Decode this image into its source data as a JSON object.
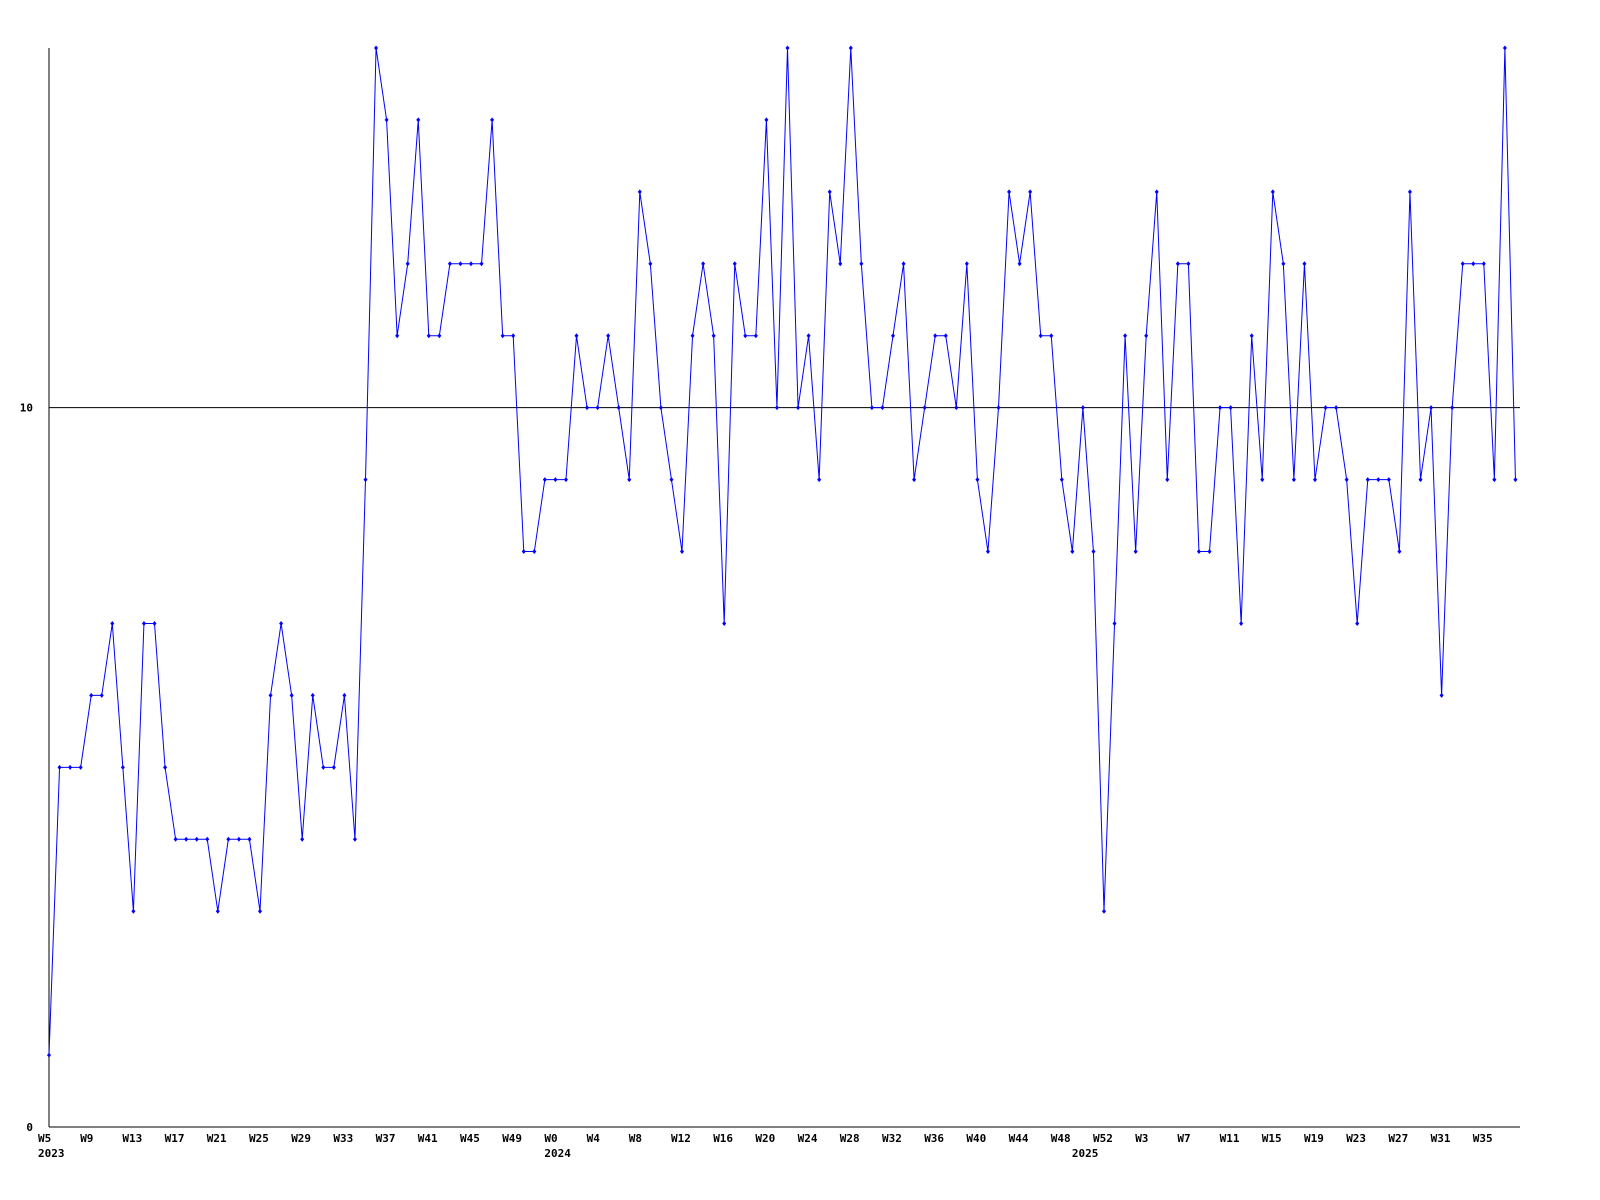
{
  "chart_data": {
    "type": "line",
    "categories": [
      "W5",
      null,
      null,
      null,
      "W9",
      null,
      null,
      null,
      "W13",
      null,
      null,
      null,
      "W17",
      null,
      null,
      null,
      "W21",
      null,
      null,
      null,
      "W25",
      null,
      null,
      null,
      "W29",
      null,
      null,
      null,
      "W33",
      null,
      null,
      null,
      "W37",
      null,
      null,
      null,
      "W41",
      null,
      null,
      null,
      "W45",
      null,
      null,
      null,
      "W49",
      null,
      null,
      null,
      "W0",
      null,
      null,
      null,
      "W4",
      null,
      null,
      null,
      "W8",
      null,
      null,
      null,
      "W12",
      null,
      null,
      null,
      "W16",
      null,
      null,
      null,
      "W20",
      null,
      null,
      null,
      "W24",
      null,
      null,
      null,
      "W28",
      null,
      null,
      null,
      "W32",
      null,
      null,
      null,
      "W36",
      null,
      null,
      null,
      "W40",
      null,
      null,
      null,
      "W44",
      null,
      null,
      null,
      "W48",
      null,
      null,
      null,
      "W52",
      null,
      null,
      null,
      "W3",
      null,
      null,
      null,
      "W7",
      null,
      null,
      null,
      "W11",
      null,
      null,
      null,
      "W15",
      null,
      null,
      null,
      "W19",
      null,
      null,
      null,
      "W23",
      null,
      null,
      null,
      "W27",
      null,
      null,
      null,
      "W31",
      null,
      null,
      null,
      "W35",
      null,
      null,
      null
    ],
    "category_years": [
      "2023",
      null,
      null,
      null,
      null,
      null,
      null,
      null,
      null,
      null,
      null,
      null,
      null,
      null,
      null,
      null,
      null,
      null,
      null,
      null,
      null,
      null,
      null,
      null,
      null,
      null,
      null,
      null,
      null,
      null,
      null,
      null,
      null,
      null,
      null,
      null,
      null,
      null,
      null,
      null,
      null,
      null,
      null,
      null,
      null,
      null,
      null,
      null,
      "2024",
      null,
      null,
      null,
      null,
      null,
      null,
      null,
      null,
      null,
      null,
      null,
      null,
      null,
      null,
      null,
      null,
      null,
      null,
      null,
      null,
      null,
      null,
      null,
      null,
      null,
      null,
      null,
      null,
      null,
      null,
      null,
      null,
      null,
      null,
      null,
      null,
      null,
      null,
      null,
      null,
      null,
      null,
      null,
      null,
      null,
      null,
      null,
      null,
      null,
      "2025",
      null,
      null,
      null,
      null,
      null,
      null,
      null,
      null,
      null,
      null,
      null,
      null,
      null,
      null,
      null,
      null,
      null,
      null,
      null,
      null,
      null,
      null,
      null,
      null,
      null,
      null,
      null,
      null,
      null,
      null,
      null,
      null,
      null,
      null,
      null,
      null,
      null,
      null,
      null
    ],
    "series": [
      {
        "color": "#0000ff",
        "values": [
          1,
          5,
          5,
          5,
          6,
          6,
          7,
          5,
          3,
          7,
          7,
          5,
          4,
          4,
          4,
          4,
          3,
          4,
          4,
          4,
          3,
          6,
          7,
          6,
          4,
          6,
          5,
          5,
          6,
          4,
          9,
          15,
          14,
          11,
          12,
          14,
          11,
          11,
          12,
          12,
          12,
          12,
          14,
          11,
          11,
          8,
          8,
          9,
          9,
          9,
          11,
          10,
          10,
          11,
          10,
          9,
          13,
          12,
          10,
          9,
          8,
          11,
          12,
          11,
          7,
          12,
          11,
          11,
          14,
          10,
          15,
          10,
          11,
          9,
          13,
          12,
          15,
          12,
          10,
          10,
          11,
          12,
          9,
          10,
          11,
          11,
          10,
          12,
          9,
          8,
          10,
          13,
          12,
          13,
          11,
          11,
          9,
          8,
          10,
          8,
          3,
          7,
          11,
          8,
          11,
          13,
          9,
          12,
          12,
          8,
          8,
          10,
          10,
          7,
          11,
          9,
          13,
          12,
          9,
          12,
          9,
          10,
          10,
          9,
          7,
          9,
          9,
          9,
          8,
          13,
          9,
          10,
          6,
          10,
          12,
          12,
          12,
          9,
          15,
          9
        ]
      }
    ],
    "ylim": [
      0,
      15
    ],
    "yticks": [
      0,
      10
    ],
    "grid": true,
    "grid_color": "#000000"
  }
}
